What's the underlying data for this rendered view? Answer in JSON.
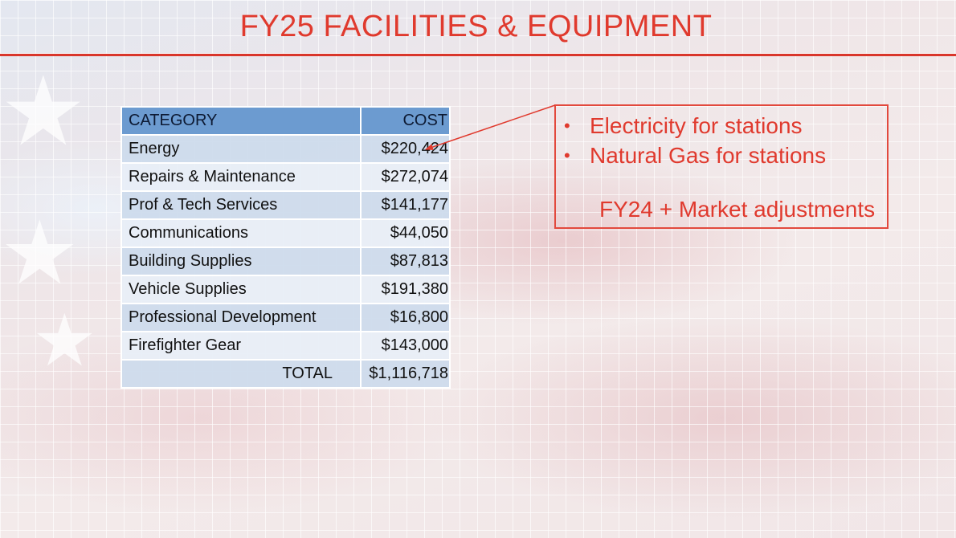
{
  "slide": {
    "title": "FY25 FACILITIES & EQUIPMENT"
  },
  "table": {
    "headers": {
      "category": "CATEGORY",
      "cost": "COST"
    },
    "rows": [
      {
        "category": "Energy",
        "cost": "$220,424"
      },
      {
        "category": "Repairs & Maintenance",
        "cost": "$272,074"
      },
      {
        "category": "Prof & Tech Services",
        "cost": "$141,177"
      },
      {
        "category": "Communications",
        "cost": "$44,050"
      },
      {
        "category": "Building Supplies",
        "cost": "$87,813"
      },
      {
        "category": "Vehicle Supplies",
        "cost": "$191,380"
      },
      {
        "category": "Professional Development",
        "cost": "$16,800"
      },
      {
        "category": "Firefighter Gear",
        "cost": "$143,000"
      }
    ],
    "total": {
      "label": "TOTAL",
      "cost": "$1,116,718"
    }
  },
  "callout": {
    "bullets": [
      "Electricity for stations",
      "Natural Gas for stations"
    ],
    "note": "FY24 + Market adjustments"
  },
  "colors": {
    "accent_red": "#e03a2e",
    "header_blue": "#6c9bd0",
    "row_blue_dark": "#cedbec",
    "row_blue_light": "#e8eef7"
  }
}
